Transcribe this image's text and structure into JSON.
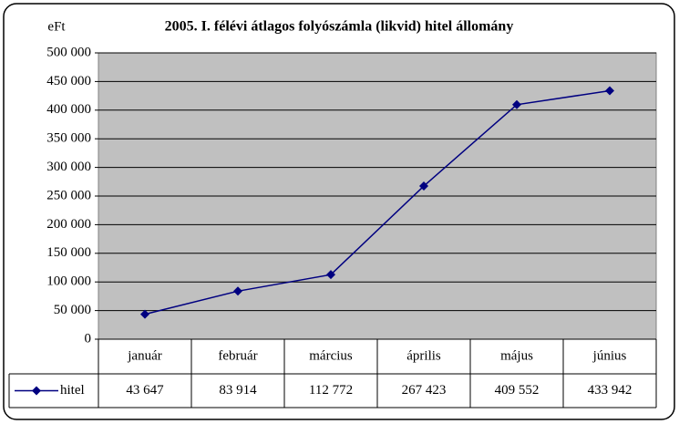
{
  "chart_data": {
    "type": "line",
    "title": "2005. I. félévi átlagos folyószámla (likvid) hitel állomány",
    "y_label": "eFt",
    "categories": [
      "január",
      "február",
      "március",
      "április",
      "május",
      "június"
    ],
    "series": [
      {
        "name": "hitel",
        "color": "#000080",
        "values": [
          43647,
          83914,
          112772,
          267423,
          409552,
          433942
        ],
        "value_labels": [
          "43 647",
          "83 914",
          "112 772",
          "267 423",
          "409 552",
          "433 942"
        ]
      }
    ],
    "ylim": [
      0,
      500000
    ],
    "yticks": [
      0,
      {
        "value": 50000,
        "label": "50 000"
      },
      {
        "value": 100000,
        "label": "100 000"
      },
      {
        "value": 150000,
        "label": "150 000"
      },
      {
        "value": 200000,
        "label": "200 000"
      },
      {
        "value": 250000,
        "label": "250 000"
      },
      {
        "value": 300000,
        "label": "300 000"
      },
      {
        "value": 350000,
        "label": "350 000"
      },
      {
        "value": 400000,
        "label": "400 000"
      },
      {
        "value": 450000,
        "label": "450 000"
      },
      {
        "value": 500000,
        "label": "500 000"
      }
    ],
    "grid": true,
    "plot_background": "#c0c0c0"
  }
}
